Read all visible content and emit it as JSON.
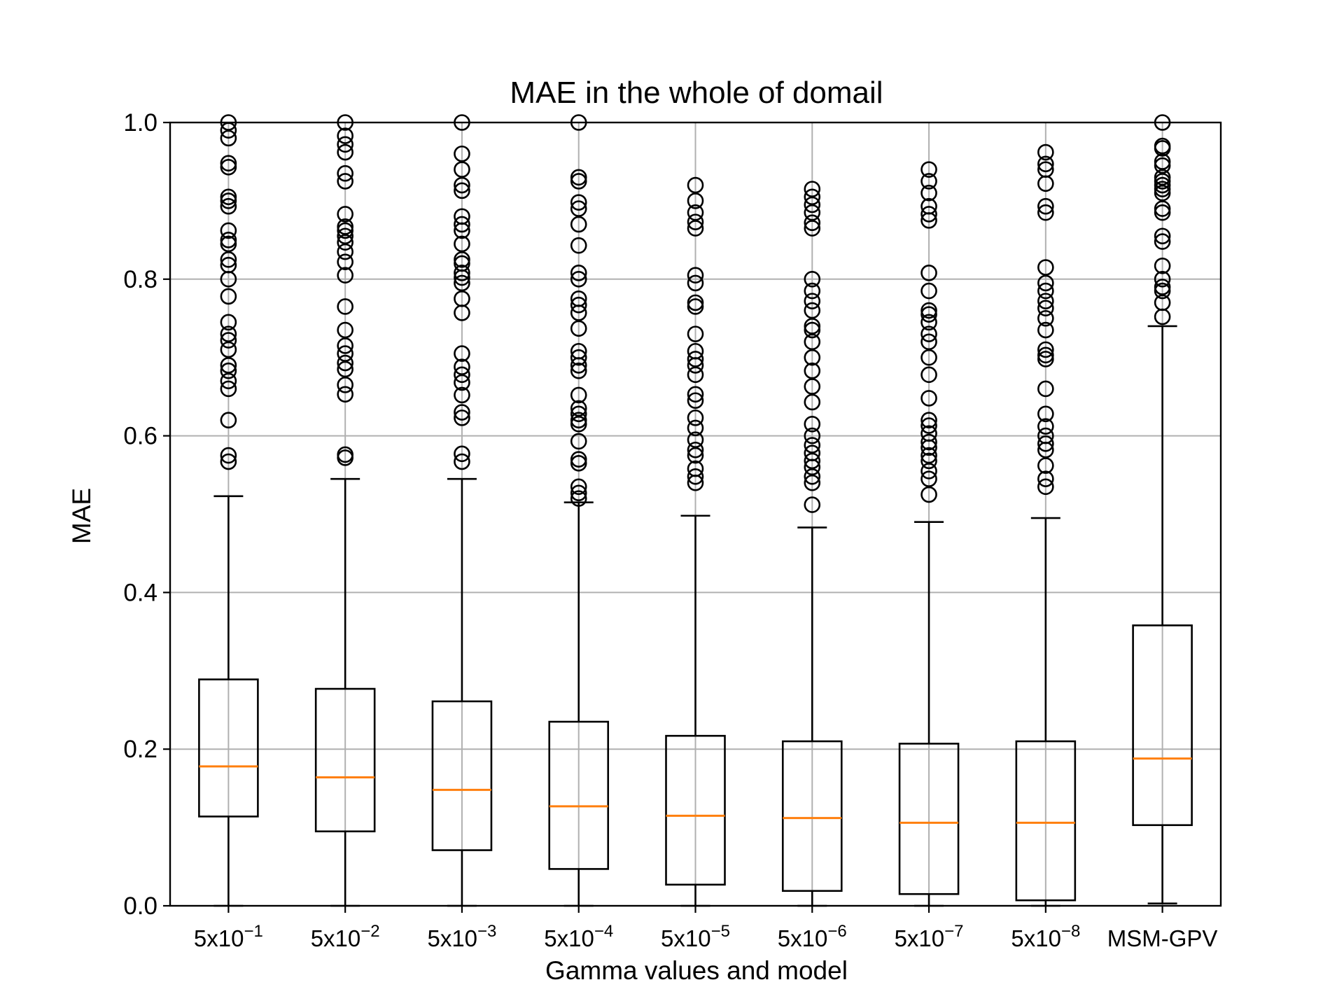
{
  "chart_data": {
    "type": "boxplot",
    "title": "MAE in the whole of domail",
    "xlabel": "Gamma values and model",
    "ylabel": "MAE",
    "ylim": [
      0.0,
      1.0
    ],
    "yticks": [
      "0.0",
      "0.2",
      "0.4",
      "0.6",
      "0.8",
      "1.0"
    ],
    "grid": true,
    "colors": {
      "box": "#000000",
      "median": "#ff7f0e",
      "grid": "#b0b0b0"
    },
    "categories": [
      {
        "base": "5x10",
        "exp": "−1"
      },
      {
        "base": "5x10",
        "exp": "−2"
      },
      {
        "base": "5x10",
        "exp": "−3"
      },
      {
        "base": "5x10",
        "exp": "−4"
      },
      {
        "base": "5x10",
        "exp": "−5"
      },
      {
        "base": "5x10",
        "exp": "−6"
      },
      {
        "base": "5x10",
        "exp": "−7"
      },
      {
        "base": "5x10",
        "exp": "−8"
      },
      {
        "base": "MSM-GPV",
        "exp": ""
      }
    ],
    "boxes": [
      {
        "whislo": 0.0,
        "q1": 0.114,
        "med": 0.178,
        "q3": 0.289,
        "whishi": 0.523,
        "fliers": [
          0.567,
          0.575,
          0.62,
          0.66,
          0.67,
          0.683,
          0.69,
          0.71,
          0.722,
          0.73,
          0.745,
          0.778,
          0.8,
          0.818,
          0.825,
          0.845,
          0.85,
          0.862,
          0.893,
          0.9,
          0.905,
          0.943,
          0.948,
          0.98,
          0.99,
          1.0
        ]
      },
      {
        "whislo": 0.0,
        "q1": 0.095,
        "med": 0.164,
        "q3": 0.277,
        "whishi": 0.545,
        "fliers": [
          0.572,
          0.576,
          0.653,
          0.665,
          0.685,
          0.693,
          0.705,
          0.715,
          0.735,
          0.765,
          0.805,
          0.822,
          0.835,
          0.847,
          0.855,
          0.862,
          0.867,
          0.883,
          0.925,
          0.935,
          0.962,
          0.972,
          0.983,
          1.0
        ]
      },
      {
        "whislo": 0.0,
        "q1": 0.071,
        "med": 0.148,
        "q3": 0.261,
        "whishi": 0.545,
        "fliers": [
          0.567,
          0.577,
          0.623,
          0.63,
          0.652,
          0.668,
          0.678,
          0.688,
          0.705,
          0.757,
          0.775,
          0.795,
          0.802,
          0.808,
          0.82,
          0.825,
          0.845,
          0.862,
          0.87,
          0.88,
          0.913,
          0.92,
          0.94,
          0.96,
          1.0
        ]
      },
      {
        "whislo": 0.0,
        "q1": 0.047,
        "med": 0.127,
        "q3": 0.235,
        "whishi": 0.515,
        "fliers": [
          0.52,
          0.527,
          0.535,
          0.565,
          0.57,
          0.593,
          0.615,
          0.62,
          0.628,
          0.635,
          0.652,
          0.683,
          0.69,
          0.7,
          0.708,
          0.737,
          0.757,
          0.767,
          0.775,
          0.8,
          0.808,
          0.843,
          0.87,
          0.89,
          0.898,
          0.925,
          0.93,
          1.0
        ]
      },
      {
        "whislo": 0.0,
        "q1": 0.027,
        "med": 0.115,
        "q3": 0.217,
        "whishi": 0.498,
        "fliers": [
          0.54,
          0.548,
          0.558,
          0.575,
          0.582,
          0.595,
          0.61,
          0.623,
          0.645,
          0.653,
          0.678,
          0.69,
          0.698,
          0.708,
          0.73,
          0.765,
          0.77,
          0.795,
          0.805,
          0.865,
          0.873,
          0.885,
          0.9,
          0.92
        ]
      },
      {
        "whislo": 0.0,
        "q1": 0.019,
        "med": 0.112,
        "q3": 0.21,
        "whishi": 0.483,
        "fliers": [
          0.512,
          0.54,
          0.548,
          0.56,
          0.568,
          0.578,
          0.588,
          0.6,
          0.615,
          0.643,
          0.663,
          0.683,
          0.7,
          0.72,
          0.735,
          0.74,
          0.76,
          0.772,
          0.785,
          0.8,
          0.865,
          0.872,
          0.885,
          0.895,
          0.905,
          0.915
        ]
      },
      {
        "whislo": 0.0,
        "q1": 0.015,
        "med": 0.106,
        "q3": 0.207,
        "whishi": 0.49,
        "fliers": [
          0.525,
          0.545,
          0.555,
          0.568,
          0.575,
          0.585,
          0.592,
          0.603,
          0.613,
          0.62,
          0.648,
          0.678,
          0.7,
          0.72,
          0.73,
          0.745,
          0.755,
          0.76,
          0.785,
          0.808,
          0.875,
          0.883,
          0.893,
          0.91,
          0.925,
          0.94
        ]
      },
      {
        "whislo": 0.0,
        "q1": 0.007,
        "med": 0.106,
        "q3": 0.21,
        "whishi": 0.495,
        "fliers": [
          0.535,
          0.545,
          0.562,
          0.582,
          0.59,
          0.6,
          0.612,
          0.628,
          0.66,
          0.698,
          0.703,
          0.71,
          0.735,
          0.75,
          0.763,
          0.772,
          0.785,
          0.795,
          0.815,
          0.885,
          0.893,
          0.922,
          0.94,
          0.947,
          0.962
        ]
      },
      {
        "whislo": 0.003,
        "q1": 0.103,
        "med": 0.188,
        "q3": 0.358,
        "whishi": 0.74,
        "fliers": [
          0.752,
          0.77,
          0.785,
          0.79,
          0.8,
          0.817,
          0.848,
          0.855,
          0.885,
          0.89,
          0.91,
          0.915,
          0.92,
          0.925,
          0.93,
          0.945,
          0.95,
          0.967,
          0.97,
          1.0
        ]
      }
    ]
  }
}
